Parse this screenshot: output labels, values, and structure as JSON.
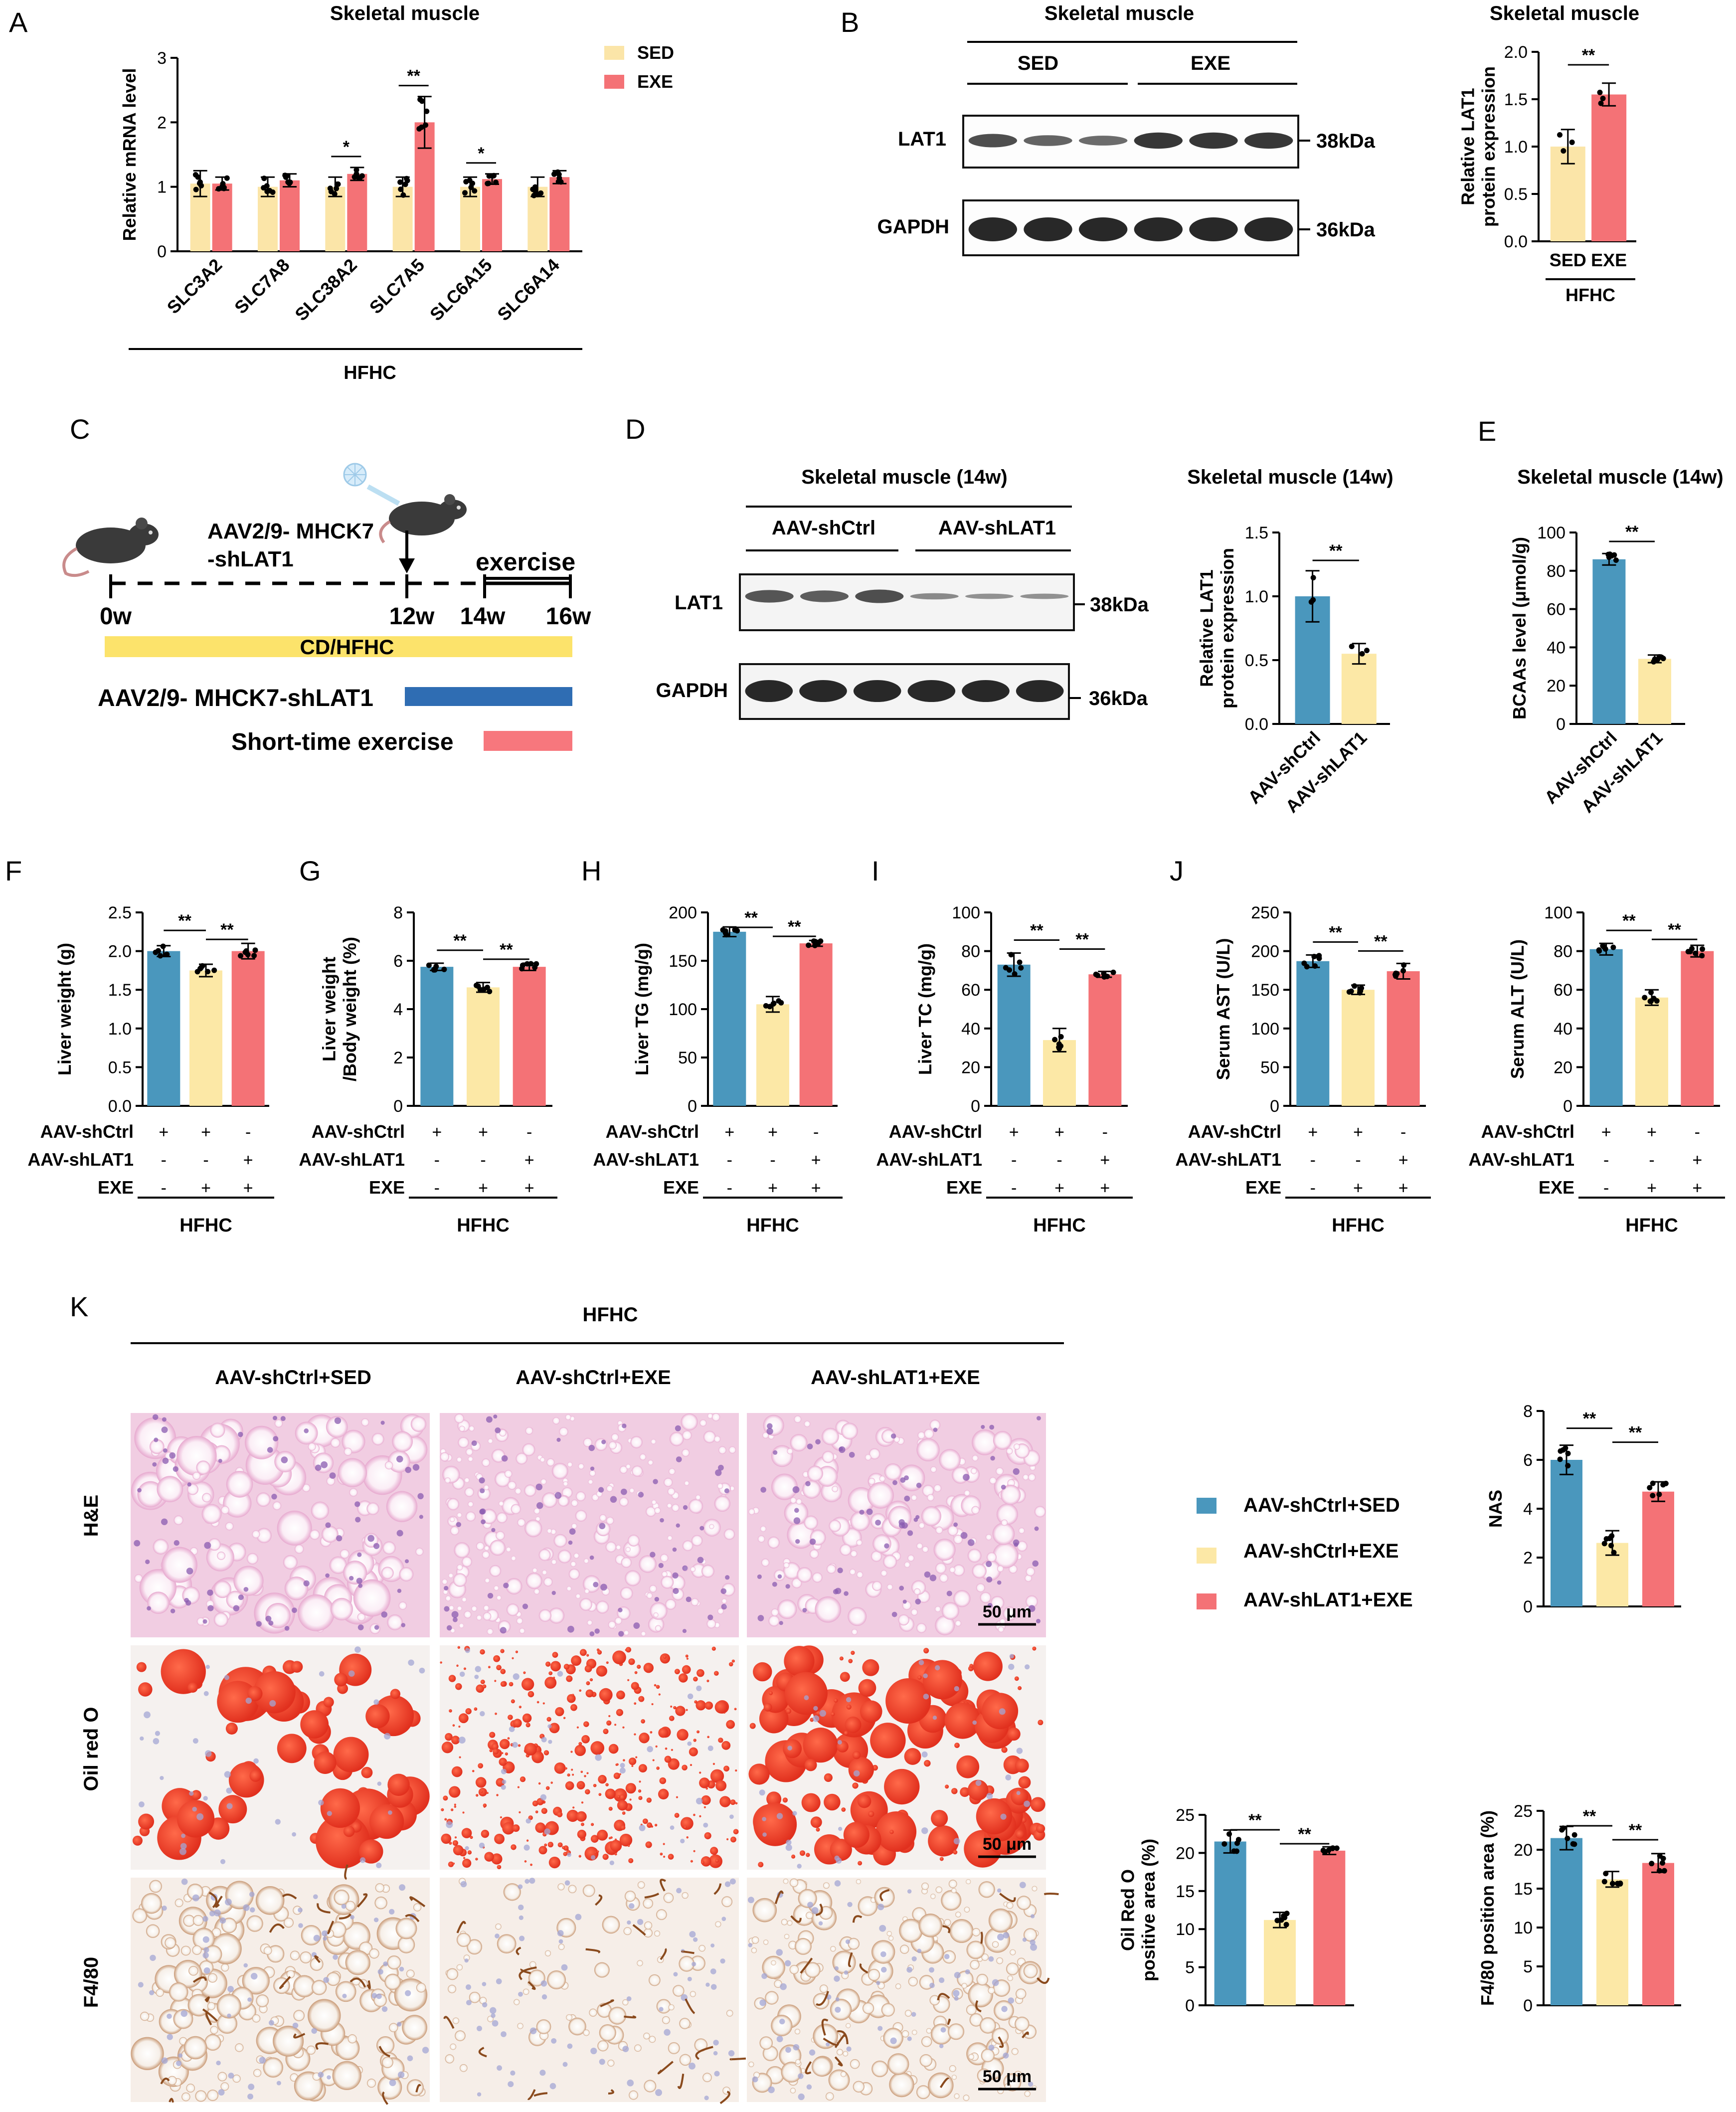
{
  "colors": {
    "sed": "#FBE5A8",
    "exe": "#F47276",
    "ctrl": "#4A97BD",
    "shlat": "#FCE8A6",
    "bar": "#2F6DB3",
    "yellow": "#FCE36B",
    "pink": "#F7777D"
  },
  "panelA": {
    "letter": "A",
    "title": "Skeletal muscle",
    "legend": [
      "SED",
      "EXE"
    ],
    "group_label": "HFHC",
    "chart_data": {
      "type": "bar",
      "ylabel": "Relative mRNA level",
      "ylim": [
        0,
        3
      ],
      "yticks": [
        "0",
        "1",
        "2",
        "3"
      ],
      "categories": [
        "SLC3A2",
        "SLC7A8",
        "SLC38A2",
        "SLC7A5",
        "SLC6A15",
        "SLC6A14"
      ],
      "series": [
        {
          "name": "SED",
          "values": [
            1.05,
            1.0,
            1.0,
            1.0,
            1.0,
            1.0
          ],
          "err": [
            0.2,
            0.15,
            0.15,
            0.15,
            0.15,
            0.15
          ]
        },
        {
          "name": "EXE",
          "values": [
            1.05,
            1.1,
            1.2,
            2.0,
            1.12,
            1.15
          ],
          "err": [
            0.1,
            0.1,
            0.1,
            0.4,
            0.08,
            0.1
          ]
        }
      ],
      "sig": [
        {
          "cat": 2,
          "label": "*"
        },
        {
          "cat": 3,
          "label": "**"
        },
        {
          "cat": 4,
          "label": "*"
        }
      ]
    }
  },
  "panelB": {
    "letter": "B",
    "blot_title": "Skeletal muscle",
    "groups": [
      "SED",
      "EXE"
    ],
    "bands": [
      {
        "label": "LAT1",
        "size": "38kDa"
      },
      {
        "label": "GAPDH",
        "size": "36kDa"
      }
    ],
    "chart_title": "Skeletal muscle",
    "group_label": "HFHC",
    "chart_data": {
      "type": "bar",
      "ylabel": [
        "Relative LAT1",
        "protein expression"
      ],
      "ylim": [
        0,
        2.0
      ],
      "yticks": [
        "0.0",
        "0.5",
        "1.0",
        "1.5",
        "2.0"
      ],
      "categories": [
        "SED",
        "EXE"
      ],
      "values": [
        1.0,
        1.55
      ],
      "err": [
        0.18,
        0.12
      ],
      "sig": "**"
    }
  },
  "panelC": {
    "letter": "C",
    "inject_label": [
      "AAV2/9- MHCK7",
      "-shLAT1"
    ],
    "exercise_label": "exercise",
    "timepoints": [
      "0w",
      "12w",
      "14w",
      "16w"
    ],
    "diet_label": "CD/HFHC",
    "aav_label": "AAV2/9- MHCK7-shLAT1",
    "ex_label": "Short-time exercise"
  },
  "panelD": {
    "letter": "D",
    "blot_title": "Skeletal muscle (14w)",
    "groups": [
      "AAV-shCtrl",
      "AAV-shLAT1"
    ],
    "bands": [
      {
        "label": "LAT1",
        "size": "38kDa"
      },
      {
        "label": "GAPDH",
        "size": "36kDa"
      }
    ],
    "chart_title": "Skeletal muscle (14w)",
    "chart_data": {
      "type": "bar",
      "ylabel": [
        "Relative LAT1",
        "protein expression"
      ],
      "ylim": [
        0,
        1.5
      ],
      "yticks": [
        "0.0",
        "0.5",
        "1.0",
        "1.5"
      ],
      "categories": [
        "AAV-shCtrl",
        "AAV-shLAT1"
      ],
      "values": [
        1.0,
        0.55
      ],
      "err": [
        0.2,
        0.08
      ],
      "sig": "**"
    }
  },
  "panelE": {
    "letter": "E",
    "chart_title": "Skeletal muscle (14w)",
    "chart_data": {
      "type": "bar",
      "ylabel": "BCAAs level (μmol/g)",
      "ylim": [
        0,
        100
      ],
      "yticks": [
        "0",
        "20",
        "40",
        "60",
        "80",
        "100"
      ],
      "categories": [
        "AAV-shCtrl",
        "AAV-shLAT1"
      ],
      "values": [
        86,
        34
      ],
      "err": [
        3,
        2
      ],
      "sig": "**"
    }
  },
  "row3": {
    "row_labels": [
      "AAV-shCtrl",
      "AAV-shLAT1",
      "EXE"
    ],
    "signs": [
      [
        "+",
        "+",
        "-"
      ],
      [
        "-",
        "-",
        "+"
      ],
      [
        "-",
        "+",
        "+"
      ]
    ],
    "group_label": "HFHC",
    "sig": [
      "**",
      "**"
    ],
    "panels": [
      {
        "letter": "F",
        "chart_data": {
          "type": "bar",
          "ylabel": [
            "Liver weight (g)"
          ],
          "ylim": [
            0,
            2.5
          ],
          "yticks": [
            "0.0",
            "0.5",
            "1.0",
            "1.5",
            "2.0",
            "2.5"
          ],
          "values": [
            2.0,
            1.75,
            2.0
          ],
          "err": [
            0.07,
            0.08,
            0.1
          ]
        }
      },
      {
        "letter": "G",
        "chart_data": {
          "type": "bar",
          "ylabel": [
            "Liver weight",
            "/Body weight (%)"
          ],
          "ylim": [
            0,
            8
          ],
          "yticks": [
            "0",
            "2",
            "4",
            "6",
            "8"
          ],
          "values": [
            5.75,
            4.9,
            5.75
          ],
          "err": [
            0.15,
            0.2,
            0.15
          ]
        }
      },
      {
        "letter": "H",
        "chart_data": {
          "type": "bar",
          "ylabel": [
            "Liver TG (mg/g)"
          ],
          "ylim": [
            0,
            200
          ],
          "yticks": [
            "0",
            "50",
            "100",
            "150",
            "200"
          ],
          "values": [
            180,
            105,
            168
          ],
          "err": [
            5,
            8,
            3
          ]
        }
      },
      {
        "letter": "I",
        "chart_data": {
          "type": "bar",
          "ylabel": [
            "Liver TC (mg/g)"
          ],
          "ylim": [
            0,
            100
          ],
          "yticks": [
            "0",
            "20",
            "40",
            "60",
            "80",
            "100"
          ],
          "values": [
            73,
            34,
            68
          ],
          "err": [
            6,
            6,
            1.5
          ]
        }
      },
      {
        "letter": "J",
        "chart_data": {
          "type": "bar",
          "ylabel": [
            "Serum AST (U/L)"
          ],
          "ylim": [
            0,
            250
          ],
          "yticks": [
            "0",
            "50",
            "100",
            "150",
            "200",
            "250"
          ],
          "values": [
            187,
            150,
            174
          ],
          "err": [
            8,
            6,
            10
          ]
        }
      },
      {
        "letter": "",
        "chart_data": {
          "type": "bar",
          "ylabel": [
            "Serum ALT (U/L)"
          ],
          "ylim": [
            0,
            100
          ],
          "yticks": [
            "0",
            "20",
            "40",
            "60",
            "80",
            "100"
          ],
          "values": [
            81,
            56,
            80
          ],
          "err": [
            3,
            4,
            3
          ]
        }
      }
    ]
  },
  "panelK": {
    "letter": "K",
    "header": "HFHC",
    "columns": [
      "AAV-shCtrl+SED",
      "AAV-shCtrl+EXE",
      "AAV-shLAT1+EXE"
    ],
    "rows": [
      "H&E",
      "Oil red O",
      "F4/80"
    ],
    "scale": "50 μm",
    "legend": [
      "AAV-shCtrl+SED",
      "AAV-shCtrl+EXE",
      "AAV-shLAT1+EXE"
    ],
    "sig": [
      "**",
      "**"
    ],
    "charts": [
      {
        "chart_data": {
          "type": "bar",
          "ylabel": [
            "NAS"
          ],
          "ylim": [
            0,
            8
          ],
          "yticks": [
            "0",
            "2",
            "4",
            "6",
            "8"
          ],
          "values": [
            6.0,
            2.6,
            4.7
          ],
          "err": [
            0.6,
            0.5,
            0.4
          ]
        }
      },
      {
        "chart_data": {
          "type": "bar",
          "ylabel": [
            "Oil Red O",
            "positive area (%)"
          ],
          "ylim": [
            0,
            25
          ],
          "yticks": [
            "0",
            "5",
            "10",
            "15",
            "20",
            "25"
          ],
          "values": [
            21.5,
            11.2,
            20.3
          ],
          "err": [
            1.5,
            1.0,
            0.5
          ]
        }
      },
      {
        "chart_data": {
          "type": "bar",
          "ylabel": [
            "F4/80 position area (%)"
          ],
          "ylim": [
            0,
            25
          ],
          "yticks": [
            "0",
            "5",
            "10",
            "15",
            "20",
            "25"
          ],
          "values": [
            21.5,
            16.2,
            18.3
          ],
          "err": [
            1.5,
            1.0,
            1.2
          ]
        }
      }
    ]
  }
}
